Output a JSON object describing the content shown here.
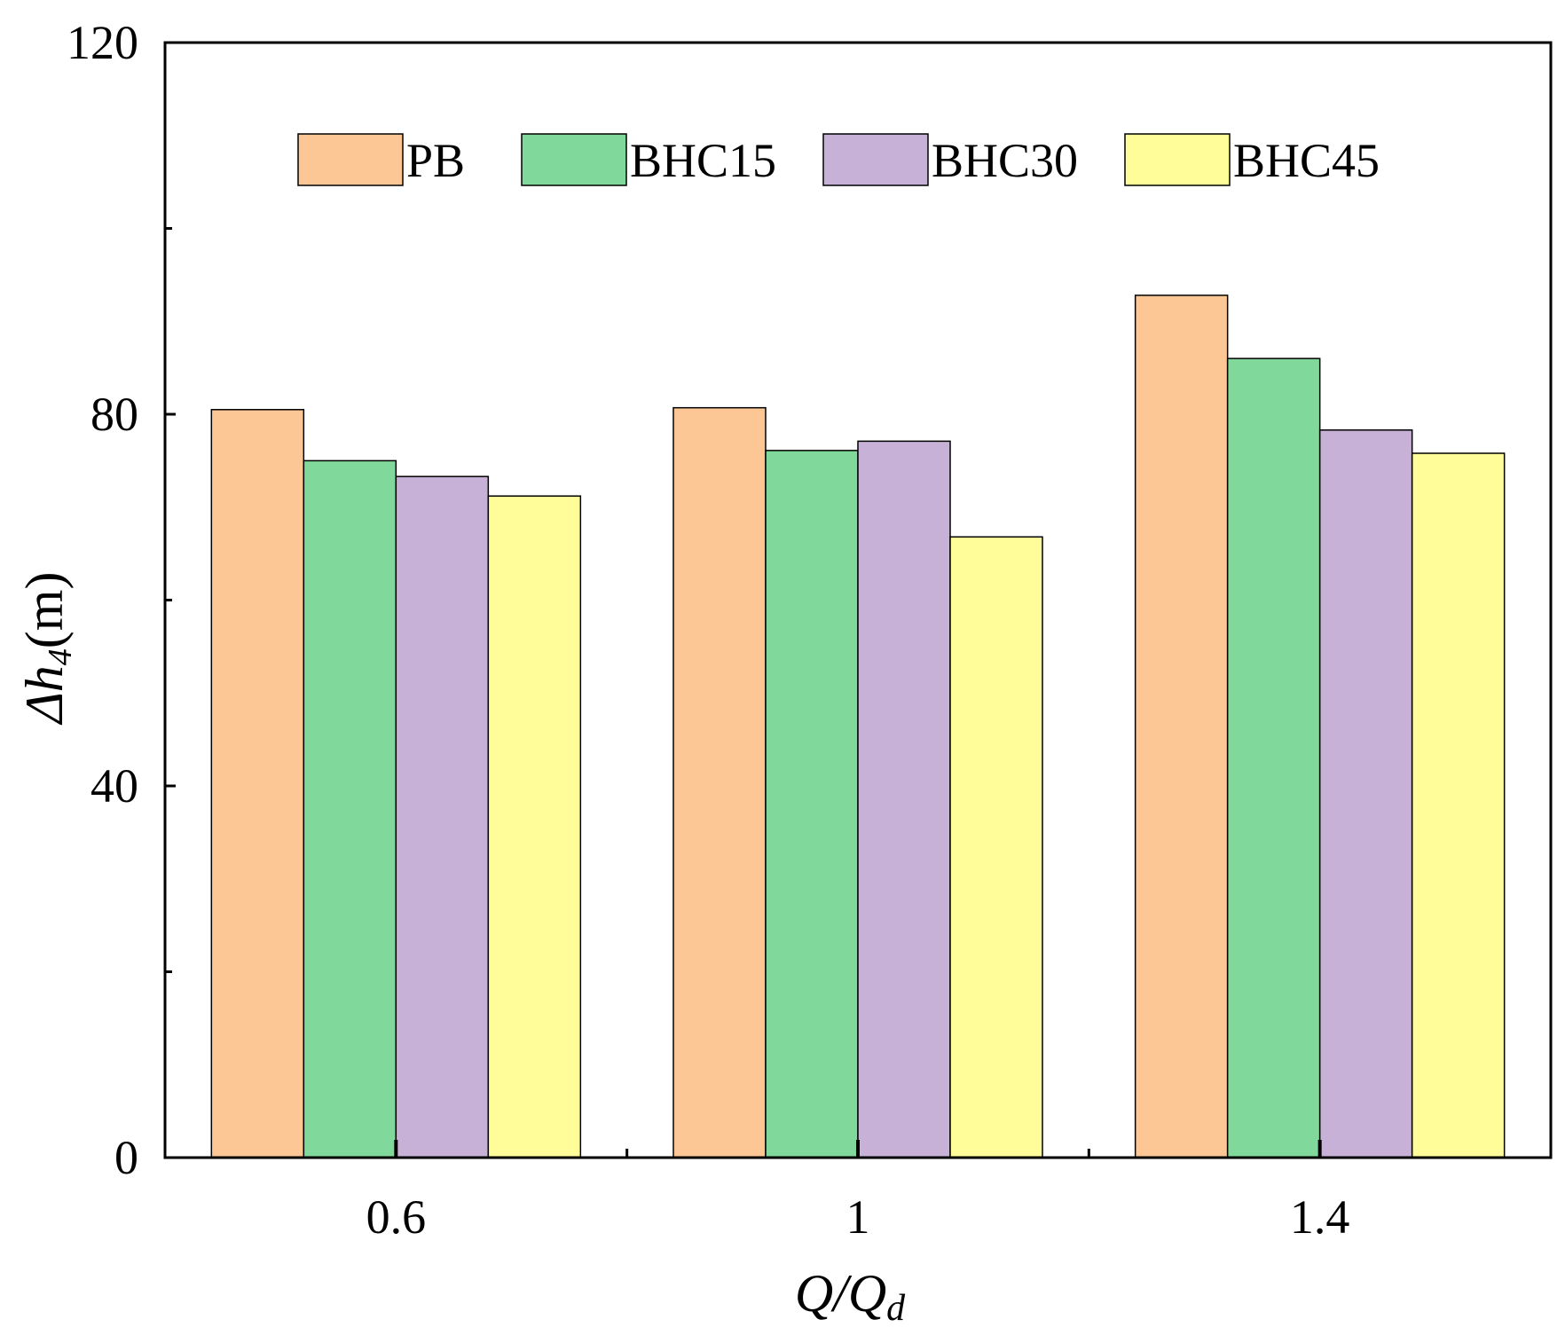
{
  "chart_data": {
    "type": "bar",
    "categories": [
      "0.6",
      "1",
      "1.4"
    ],
    "series": [
      {
        "name": "PB",
        "color": "#FDC795",
        "values": [
          80.5,
          80.7,
          92.8
        ]
      },
      {
        "name": "BHC15",
        "color": "#80D99A",
        "values": [
          75.0,
          76.1,
          86.0
        ]
      },
      {
        "name": "BHC30",
        "color": "#C8B1D6",
        "values": [
          73.3,
          77.1,
          78.3
        ]
      },
      {
        "name": "BHC45",
        "color": "#FFFD99",
        "values": [
          71.2,
          66.8,
          75.8
        ]
      }
    ],
    "ylim": [
      0,
      120
    ],
    "yticks": [
      0,
      40,
      80,
      120
    ],
    "ylabel": {
      "main": "Δh",
      "sub": "4",
      "unit": "(m)"
    },
    "xlabel": {
      "main": "Q/Q",
      "sub": "d"
    },
    "legend_position": "top",
    "grid": false
  }
}
